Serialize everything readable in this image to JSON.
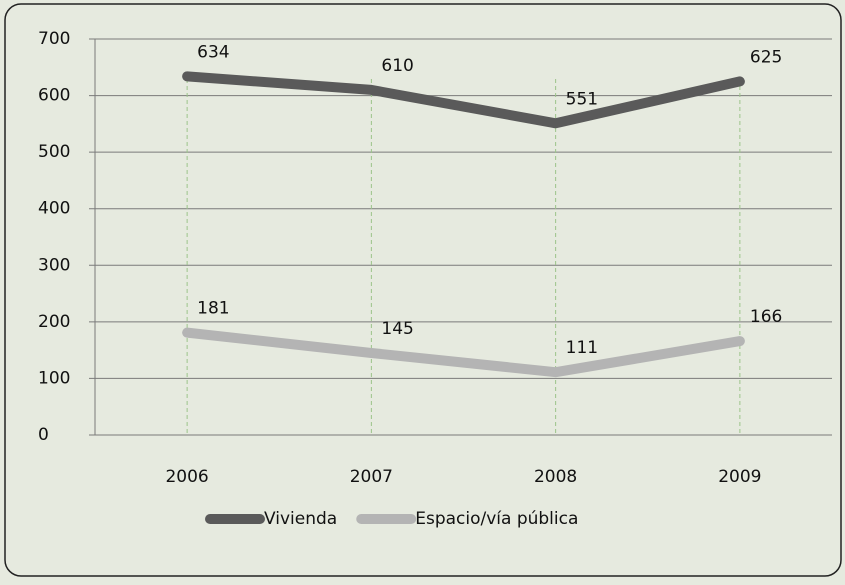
{
  "chart_data": {
    "type": "line",
    "categories": [
      "2006",
      "2007",
      "2008",
      "2009"
    ],
    "series": [
      {
        "name": "Vivienda",
        "color": "#5a5a5a",
        "values": [
          634,
          610,
          551,
          625
        ]
      },
      {
        "name": "Espacio/vía pública",
        "color": "#b4b4b4",
        "values": [
          181,
          145,
          111,
          166
        ]
      }
    ],
    "ylim": [
      0,
      700
    ],
    "yticks": [
      0,
      100,
      200,
      300,
      400,
      500,
      600,
      700
    ],
    "grid": true,
    "legend": "bottom"
  }
}
